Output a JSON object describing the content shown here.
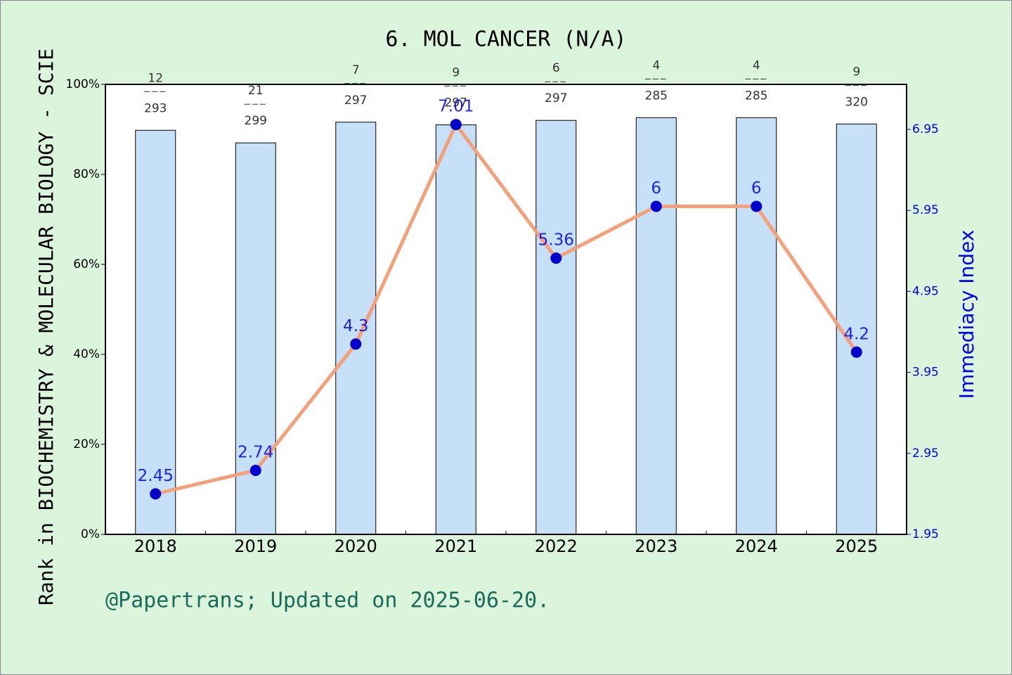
{
  "chart_data": {
    "type": "bar-line",
    "title": "6. MOL CANCER (N/A)",
    "y_label": "Rank in BIOCHEMISTRY & MOLECULAR BIOLOGY - SCIE",
    "y2_label": "Immediacy Index",
    "footer": "@Papertrans; Updated on 2025-06-20.",
    "categories": [
      "2018",
      "2019",
      "2020",
      "2021",
      "2022",
      "2023",
      "2024",
      "2025"
    ],
    "series": [
      {
        "type": "bar",
        "color": "#c6e0f7",
        "values": [
          89.8,
          87,
          91.6,
          91,
          92,
          92.6,
          92.6,
          91.2
        ],
        "ranks": [
          12,
          21,
          7,
          9,
          6,
          4,
          4,
          9
        ],
        "totals": [
          293,
          299,
          297,
          297,
          297,
          285,
          285,
          320
        ]
      },
      {
        "type": "line",
        "axis": "y2",
        "color": "#f4a07a",
        "marker_color": "#0000cc",
        "values": [
          2.45,
          2.74,
          4.3,
          7.01,
          5.36,
          6,
          6,
          4.2
        ]
      }
    ],
    "ylim": [
      0,
      100
    ],
    "yticks": [
      {
        "value": 0,
        "label": "0%"
      },
      {
        "value": 20,
        "label": "20%"
      },
      {
        "value": 40,
        "label": "40%"
      },
      {
        "value": 60,
        "label": "60%"
      },
      {
        "value": 80,
        "label": "80%"
      },
      {
        "value": 100,
        "label": "100%"
      }
    ],
    "y2lim": [
      1.95,
      7.5056
    ],
    "y2ticks": [
      1.95,
      2.95,
      3.95,
      4.95,
      5.95,
      6.95
    ]
  }
}
